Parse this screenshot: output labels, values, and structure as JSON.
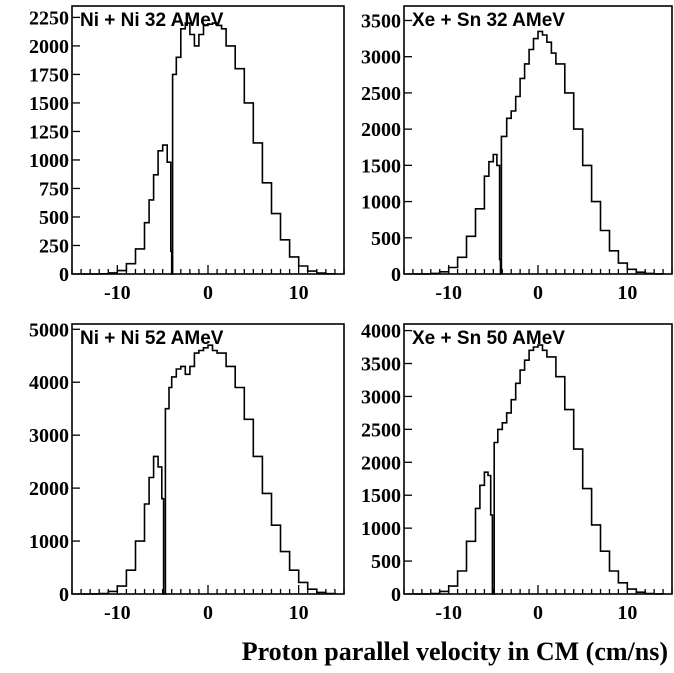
{
  "xlabel": "Proton parallel velocity in CM (cm/ns)",
  "chart_data": [
    {
      "type": "histogram",
      "title": "Ni + Ni 32 AMeV",
      "xlim": [
        -15,
        15
      ],
      "ylim": [
        0,
        2350
      ],
      "xticks": [
        -10,
        0,
        10
      ],
      "yticks": [
        0,
        250,
        500,
        750,
        1000,
        1250,
        1500,
        1750,
        2000,
        2250
      ],
      "gap_at": -4.0,
      "x": [
        -14,
        -13,
        -12,
        -11,
        -10,
        -9,
        -8,
        -7,
        -6.5,
        -6,
        -5.5,
        -5,
        -4.5,
        -4.1,
        -4.0,
        -3.9,
        -3.5,
        -3,
        -2.5,
        -2,
        -1.5,
        -1,
        -0.5,
        0,
        0.5,
        1,
        1.5,
        2,
        3,
        4,
        5,
        6,
        7,
        8,
        9,
        10,
        11,
        12,
        13,
        14
      ],
      "y": [
        0,
        0,
        2,
        10,
        30,
        90,
        220,
        450,
        650,
        870,
        1080,
        1130,
        980,
        200,
        0,
        1750,
        1900,
        2150,
        2200,
        2100,
        2000,
        2100,
        2180,
        2190,
        2200,
        2180,
        2150,
        2000,
        1800,
        1500,
        1150,
        800,
        530,
        300,
        150,
        70,
        25,
        8,
        2,
        0
      ]
    },
    {
      "type": "histogram",
      "title": "Xe + Sn 32 AMeV",
      "xlim": [
        -15,
        15
      ],
      "ylim": [
        0,
        3700
      ],
      "xticks": [
        -10,
        0,
        10
      ],
      "yticks": [
        0,
        500,
        1000,
        1500,
        2000,
        2500,
        3000,
        3500
      ],
      "gap_at": -4.2,
      "x": [
        -14,
        -13,
        -12,
        -11,
        -10,
        -9,
        -8,
        -7,
        -6,
        -5.5,
        -5,
        -4.6,
        -4.3,
        -4.2,
        -4.1,
        -3.5,
        -3,
        -2.5,
        -2,
        -1.5,
        -1,
        -0.5,
        0,
        0.5,
        1,
        1.5,
        2,
        3,
        4,
        5,
        6,
        7,
        8,
        9,
        10,
        11,
        12,
        13,
        14
      ],
      "y": [
        0,
        2,
        8,
        30,
        90,
        230,
        520,
        900,
        1350,
        1550,
        1650,
        1500,
        200,
        0,
        1900,
        2150,
        2250,
        2450,
        2700,
        2900,
        3100,
        3250,
        3350,
        3300,
        3200,
        3050,
        2900,
        2500,
        2000,
        1500,
        1000,
        600,
        320,
        150,
        65,
        25,
        8,
        2,
        0
      ]
    },
    {
      "type": "histogram",
      "title": "Ni + Ni 52 AMeV",
      "xlim": [
        -15,
        15
      ],
      "ylim": [
        0,
        5100
      ],
      "xticks": [
        -10,
        0,
        10
      ],
      "yticks": [
        0,
        1000,
        2000,
        3000,
        4000,
        5000
      ],
      "gap_at": -4.9,
      "x": [
        -14,
        -13,
        -12,
        -11,
        -10,
        -9,
        -8,
        -7,
        -6.5,
        -6,
        -5.5,
        -5.1,
        -4.9,
        -4.7,
        -4.3,
        -4,
        -3.5,
        -3,
        -2.5,
        -2,
        -1.5,
        -1,
        -0.5,
        0,
        0.5,
        1,
        2,
        3,
        4,
        5,
        6,
        7,
        8,
        9,
        10,
        11,
        12,
        13,
        14
      ],
      "y": [
        0,
        2,
        10,
        50,
        150,
        450,
        1000,
        1700,
        2200,
        2600,
        2400,
        1800,
        0,
        3500,
        3900,
        4100,
        4250,
        4300,
        4150,
        4300,
        4550,
        4600,
        4650,
        4700,
        4600,
        4550,
        4300,
        3900,
        3300,
        2600,
        1900,
        1300,
        800,
        450,
        220,
        90,
        30,
        8,
        0
      ]
    },
    {
      "type": "histogram",
      "title": "Xe + Sn 50 AMeV",
      "xlim": [
        -15,
        15
      ],
      "ylim": [
        0,
        4100
      ],
      "xticks": [
        -10,
        0,
        10
      ],
      "yticks": [
        0,
        500,
        1000,
        1500,
        2000,
        2500,
        3000,
        3500,
        4000
      ],
      "gap_at": -5.1,
      "x": [
        -14,
        -13,
        -12,
        -11,
        -10,
        -9,
        -8,
        -7,
        -6.5,
        -6,
        -5.6,
        -5.3,
        -5.1,
        -4.9,
        -4.5,
        -4,
        -3.5,
        -3,
        -2.5,
        -2,
        -1.5,
        -1,
        -0.5,
        0,
        0.5,
        1,
        2,
        3,
        4,
        5,
        6,
        7,
        8,
        9,
        10,
        11,
        12,
        13,
        14
      ],
      "y": [
        0,
        2,
        8,
        40,
        120,
        350,
        800,
        1300,
        1650,
        1850,
        1800,
        1200,
        0,
        2300,
        2500,
        2600,
        2750,
        2950,
        3200,
        3400,
        3550,
        3700,
        3750,
        3780,
        3700,
        3600,
        3300,
        2800,
        2200,
        1600,
        1050,
        650,
        350,
        170,
        75,
        28,
        8,
        2,
        0
      ]
    }
  ]
}
